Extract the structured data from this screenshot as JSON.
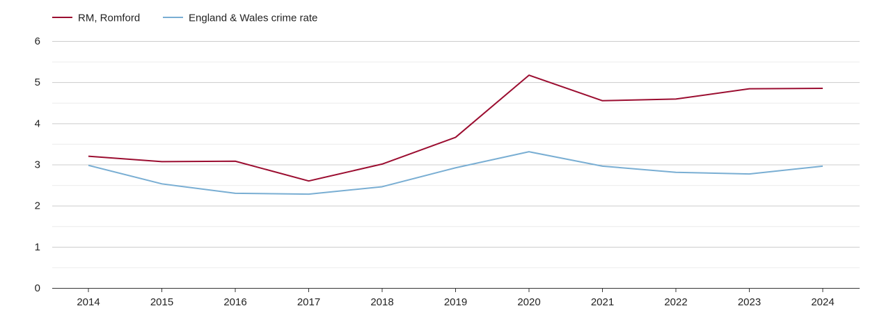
{
  "chart_data": {
    "type": "line",
    "title": "",
    "xlabel": "",
    "ylabel": "",
    "categories": [
      "2014",
      "2015",
      "2016",
      "2017",
      "2018",
      "2019",
      "2020",
      "2021",
      "2022",
      "2023",
      "2024"
    ],
    "ylim": [
      0,
      6
    ],
    "yticks": [
      "0",
      "1",
      "2",
      "3",
      "4",
      "5",
      "6"
    ],
    "grid": true,
    "legend_position": "top-left",
    "series": [
      {
        "name": "RM, Romford",
        "color": "#9b0d30",
        "values": [
          3.2,
          3.07,
          3.08,
          2.6,
          3.01,
          3.66,
          5.17,
          4.55,
          4.59,
          4.84,
          4.85
        ]
      },
      {
        "name": "England & Wales crime rate",
        "color": "#79aed3",
        "values": [
          2.98,
          2.53,
          2.3,
          2.28,
          2.46,
          2.92,
          3.31,
          2.96,
          2.81,
          2.77,
          2.96
        ]
      }
    ]
  }
}
